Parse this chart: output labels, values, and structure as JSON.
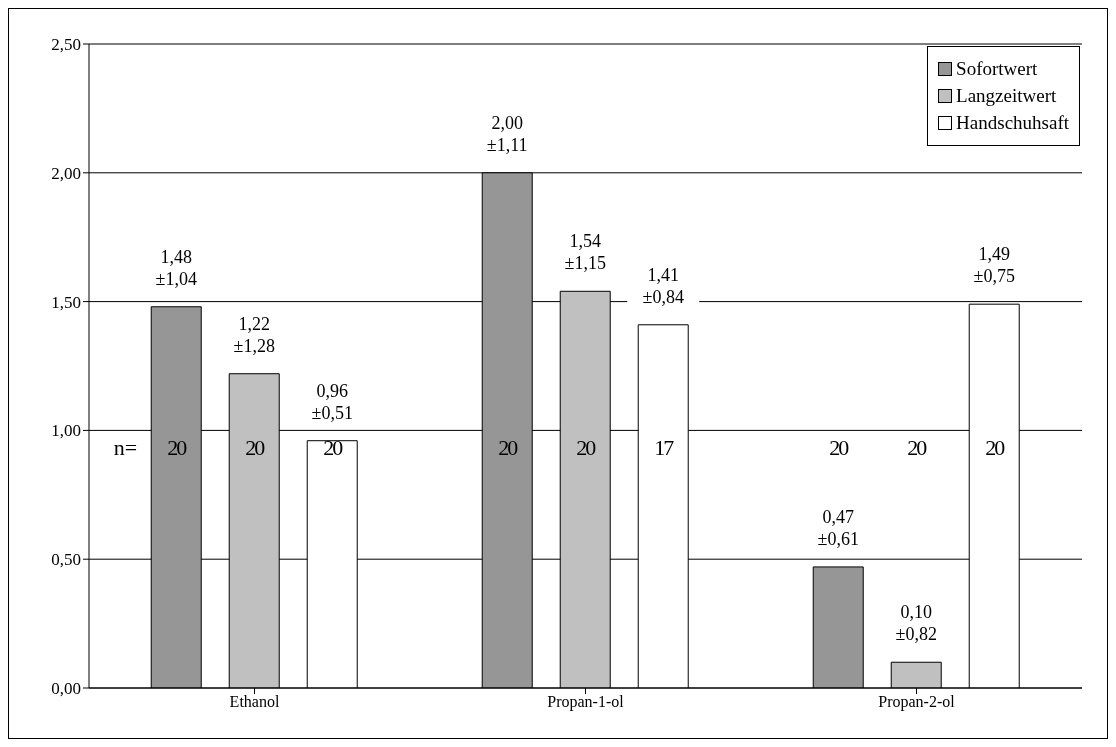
{
  "chart_data": {
    "type": "bar",
    "categories": [
      "Ethanol",
      "Propan-1-ol",
      "Propan-2-ol"
    ],
    "series": [
      {
        "name": "Sofortwert",
        "color": "#969696",
        "values": [
          1.48,
          2.0,
          0.47
        ],
        "value_labels": [
          "1,48\n±1,04",
          "2,00\n±1,11",
          "0,47\n±0,61"
        ]
      },
      {
        "name": "Langzeitwert",
        "color": "#c0c0c0",
        "values": [
          1.22,
          1.54,
          0.1
        ],
        "value_labels": [
          "1,22\n±1,28",
          "1,54\n±1,15",
          "0,10\n±0,82"
        ]
      },
      {
        "name": "Handschuhsaft",
        "color": "#ffffff",
        "values": [
          0.96,
          1.41,
          1.49
        ],
        "value_labels": [
          "0,96\n±0,51",
          "1,41\n±0,84",
          "1,49\n±0,75"
        ]
      }
    ],
    "ylim": [
      0,
      2.5
    ],
    "yticks": [
      {
        "value": 0,
        "label": "0,00"
      },
      {
        "value": 0.5,
        "label": "0,50"
      },
      {
        "value": 1,
        "label": "1,00"
      },
      {
        "value": 1.5,
        "label": "1,50"
      },
      {
        "value": 2,
        "label": "2,00"
      },
      {
        "value": 2.5,
        "label": "2,50"
      }
    ],
    "grid": "y",
    "legend": "top right",
    "annotations": [
      "n=",
      "20",
      "20",
      "20",
      "20",
      "20",
      "17",
      "20",
      "20",
      "20"
    ]
  }
}
